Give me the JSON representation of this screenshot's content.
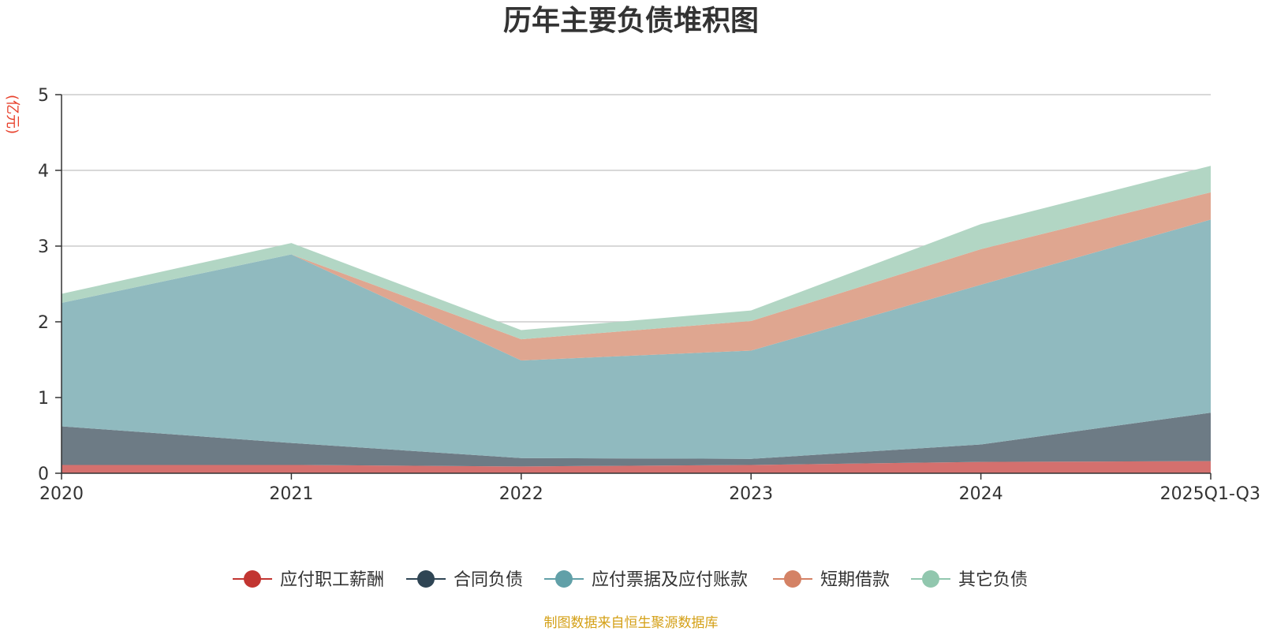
{
  "chart_data": {
    "type": "area",
    "stacked": true,
    "title": "历年主要负债堆积图",
    "unit": "(亿元)",
    "categories": [
      "2020",
      "2021",
      "2022",
      "2023",
      "2024",
      "2025Q1-Q3"
    ],
    "ylim": [
      0,
      5
    ],
    "yticks": [
      "0",
      "1",
      "2",
      "3",
      "4",
      "5"
    ],
    "grid": true,
    "legend_position": "bottom",
    "series": [
      {
        "name": "应付职工薪酬",
        "values": [
          0.11,
          0.11,
          0.09,
          0.11,
          0.15,
          0.16
        ],
        "color": "#c23531",
        "fill": "#d4706e"
      },
      {
        "name": "合同负债",
        "values": [
          0.51,
          0.29,
          0.11,
          0.08,
          0.23,
          0.64
        ],
        "color": "#2f4554",
        "fill": "#6d7b85"
      },
      {
        "name": "应付票据及应付账款",
        "values": [
          1.63,
          2.49,
          1.29,
          1.43,
          2.11,
          2.55
        ],
        "color": "#61a0a8",
        "fill": "#90babf"
      },
      {
        "name": "短期借款",
        "values": [
          0.0,
          0.0,
          0.28,
          0.39,
          0.47,
          0.36
        ],
        "color": "#d48265",
        "fill": "#dfa690"
      },
      {
        "name": "其它负债",
        "values": [
          0.12,
          0.15,
          0.12,
          0.14,
          0.33,
          0.35
        ],
        "color": "#91c7ae",
        "fill": "#b2d6c4"
      }
    ]
  },
  "footer": {
    "source": "制图数据来自恒生聚源数据库"
  }
}
